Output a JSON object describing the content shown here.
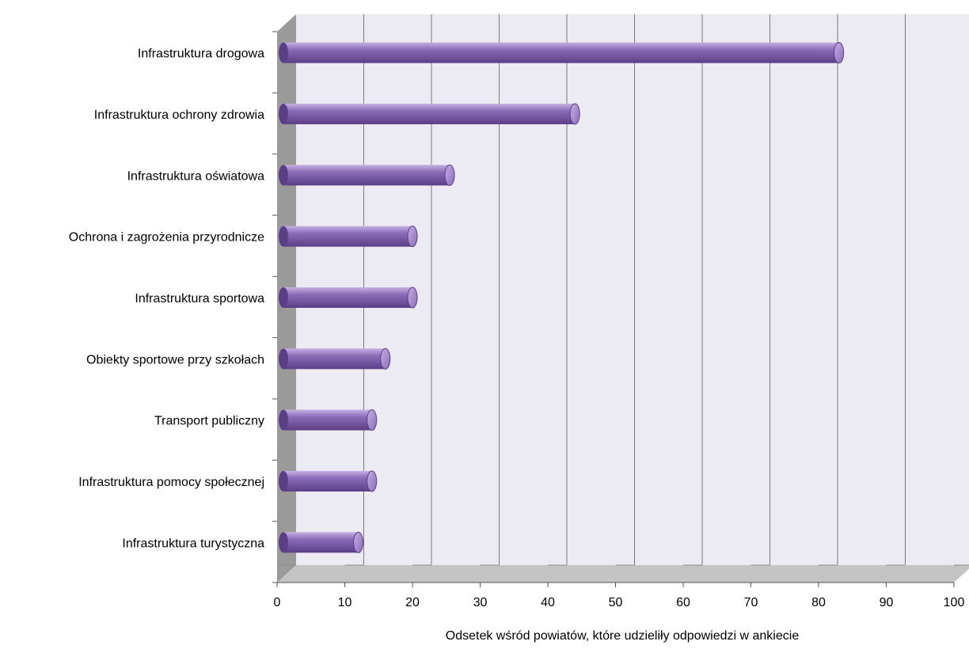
{
  "chart_data": {
    "type": "bar",
    "orientation": "horizontal",
    "style": "3d-cylinder",
    "categories": [
      "Infrastruktura drogowa",
      "Infrastruktura ochrony zdrowia",
      "Infrastruktura oświatowa",
      "Ochrona i zagrożenia przyrodnicze",
      "Infrastruktura sportowa",
      "Obiekty sportowe przy szkołach",
      "Transport publiczny",
      "Infrastruktura pomocy społecznej",
      "Infrastruktura turystyczna"
    ],
    "values": [
      83,
      44,
      25.5,
      20,
      20,
      16,
      14,
      14,
      12
    ],
    "xlabel": "Odsetek wśród powiatów, które udzieliły odpowiedzi w ankiecie",
    "ylabel": "",
    "xlim": [
      0,
      100
    ],
    "xticks": [
      0,
      10,
      20,
      30,
      40,
      50,
      60,
      70,
      80,
      90,
      100
    ],
    "xtick_labels": [
      "0",
      "10",
      "20",
      "30",
      "40",
      "50",
      "60",
      "70",
      "80",
      "90",
      "100"
    ],
    "grid": true,
    "legend": "none",
    "colors": {
      "bar": "#8a6bb8",
      "bar_dark": "#5a3f86",
      "bar_light": "#c6b0e4",
      "plot_background": "#eceaf2",
      "wall": "#9a9a9a",
      "floor": "#c4c4c4",
      "gridline": "#7a7a7a"
    }
  }
}
